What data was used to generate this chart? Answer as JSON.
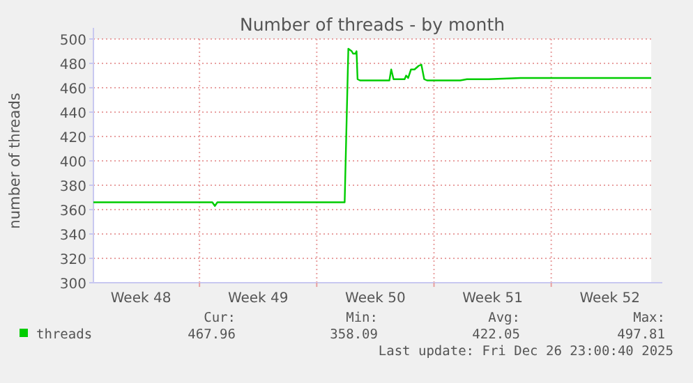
{
  "chart_data": {
    "type": "line",
    "title": "Number of threads - by month",
    "ylabel": "number of threads",
    "x": [
      "2025-11-24T16:00",
      "2025-12-01T18:24",
      "2025-12-01T22:00",
      "2025-12-02T01:36",
      "2025-12-09T16:00",
      "2025-12-09T21:17",
      "2025-12-10T02:05",
      "2025-12-10T04:00",
      "2025-12-10T07:22",
      "2025-12-10T09:02",
      "2025-12-10T10:29",
      "2025-12-10T14:05",
      "2025-12-12T08:05",
      "2025-12-12T10:43",
      "2025-12-12T14:05",
      "2025-12-13T05:55",
      "2025-12-13T08:05",
      "2025-12-13T10:58",
      "2025-12-13T15:02",
      "2025-12-13T20:05",
      "2025-12-14T02:05",
      "2025-12-14T05:55",
      "2025-12-14T10:00",
      "2025-12-14T14:05",
      "2025-12-16T13:36",
      "2025-12-16T23:12",
      "2025-12-18T06:24",
      "2025-12-20T04:00",
      "2025-12-27T23:12"
    ],
    "series": [
      {
        "name": "threads",
        "color": "#00cc00",
        "values": [
          366,
          366,
          363,
          366,
          366,
          492,
          490,
          488,
          488,
          490,
          467,
          466,
          466,
          475,
          467,
          467,
          470,
          468,
          475,
          475,
          478,
          479,
          467,
          466,
          466,
          467,
          467,
          468,
          468
        ]
      }
    ],
    "xlim": [
      "2025-11-24T16:00",
      "2025-12-27T23:12"
    ],
    "xticks": [
      {
        "value": "2025-11-27T12:00",
        "label": "Week 48"
      },
      {
        "value": "2025-12-01T00:00",
        "label": null
      },
      {
        "value": "2025-12-04T12:00",
        "label": "Week 49"
      },
      {
        "value": "2025-12-08T00:00",
        "label": null
      },
      {
        "value": "2025-12-11T12:00",
        "label": "Week 50"
      },
      {
        "value": "2025-12-15T00:00",
        "label": null
      },
      {
        "value": "2025-12-18T12:00",
        "label": "Week 51"
      },
      {
        "value": "2025-12-22T00:00",
        "label": null
      },
      {
        "value": "2025-12-25T12:00",
        "label": "Week 52"
      }
    ],
    "ylim": [
      300,
      500
    ],
    "yticks": [
      300,
      320,
      340,
      360,
      380,
      400,
      420,
      440,
      460,
      480,
      500
    ],
    "grid": true,
    "legend": "bottom",
    "marker": "none",
    "line_style": "solid",
    "annotations": [
      "Cur:",
      "467.96",
      "Min:",
      "358.09",
      "Avg:",
      "422.05",
      "Max:",
      "497.81",
      "Last update: Fri Dec 26 23:00:40 2025"
    ]
  }
}
